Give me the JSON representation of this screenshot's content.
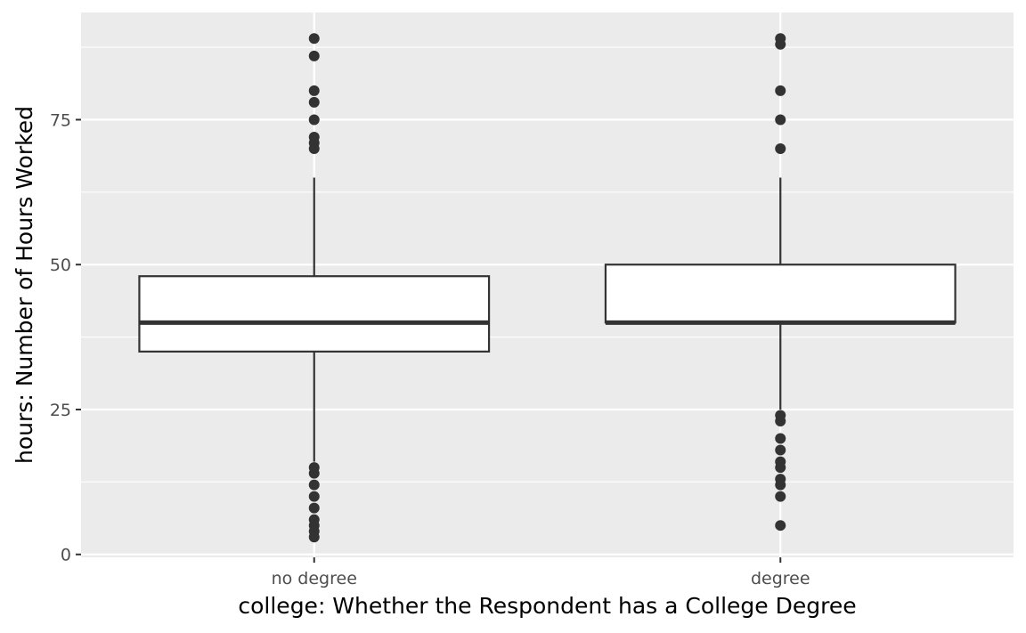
{
  "chart_data": {
    "type": "boxplot",
    "xlabel": "college: Whether the Respondent has a College Degree",
    "ylabel": "hours: Number of Hours Worked",
    "ylim": [
      -0.5,
      93.5
    ],
    "yticks": [
      0,
      25,
      50,
      75
    ],
    "categories": [
      "no degree",
      "degree"
    ],
    "grid": true,
    "background": "#ebebeb",
    "colors": {
      "panel": "#ebebeb",
      "grid": "#ffffff",
      "box_fill": "#ffffff",
      "box_line": "#333333",
      "points": "#333333"
    },
    "boxes": [
      {
        "category": "no degree",
        "q1": 35,
        "median": 40,
        "q3": 48,
        "whisker_low": 16,
        "whisker_high": 65,
        "outliers": [
          89,
          86,
          80,
          78,
          75,
          72,
          71,
          70,
          15,
          14,
          12,
          10,
          8,
          6,
          5,
          4,
          3
        ]
      },
      {
        "category": "degree",
        "q1": 40,
        "median": 40,
        "q3": 50,
        "whisker_low": 25,
        "whisker_high": 65,
        "outliers": [
          89,
          88,
          80,
          75,
          70,
          24,
          23,
          20,
          18,
          16,
          15,
          13,
          12,
          10,
          5
        ]
      }
    ]
  }
}
